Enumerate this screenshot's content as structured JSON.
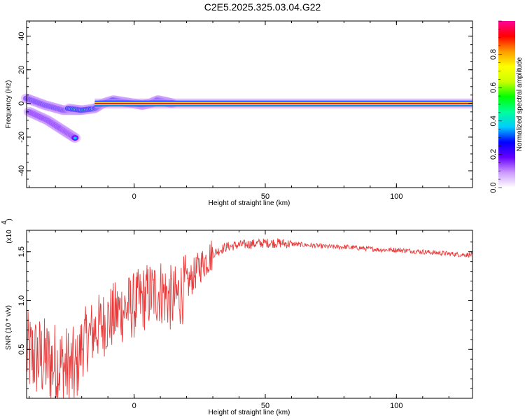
{
  "title": "C2E5.2025.325.03.04.G22",
  "chart_data": [
    {
      "type": "heatmap",
      "xlabel": "Height of straight line (km)",
      "ylabel": "Frequency (Hz)",
      "xlim": [
        -41,
        129
      ],
      "ylim": [
        -50,
        49
      ],
      "xticks": [
        0,
        50,
        100
      ],
      "yticks": [
        -40,
        -20,
        0,
        20,
        40
      ],
      "colorbar": {
        "label": "Normalized spectral amplitude",
        "range": [
          0,
          1
        ],
        "ticks": [
          "0.0",
          "0.2",
          "0.4",
          "0.6",
          "0.8"
        ],
        "colors": [
          "#ffffff",
          "#cc99ff",
          "#6600ff",
          "#0000ff",
          "#00ccff",
          "#00ff99",
          "#00ff00",
          "#ccff00",
          "#ffff00",
          "#ff9900",
          "#ff0000",
          "#ff0099"
        ]
      },
      "main_trace": {
        "x_start": -15,
        "x_end": 129,
        "frequency": 0,
        "amplitude": 0.85
      },
      "spread_branches": [
        {
          "x": [
            -41,
            -34,
            -27,
            -20
          ],
          "frequency": [
            3,
            -1,
            -4,
            -4
          ]
        },
        {
          "x": [
            -40,
            -33,
            -27,
            -22
          ],
          "frequency": [
            -5,
            -10,
            -16,
            -21
          ]
        }
      ]
    },
    {
      "type": "line",
      "xlabel": "Height of straight line (km)",
      "ylabel": "SNR (10 * v/v)",
      "yscale_note": "(x10^4)",
      "xlim": [
        -41,
        129
      ],
      "ylim": [
        0.0,
        1.72
      ],
      "xticks": [
        0,
        50,
        100
      ],
      "yticks": [
        0.5,
        1.0,
        1.5
      ],
      "color": "#e83a3a",
      "series": [
        {
          "x": [
            -41,
            -35,
            -30,
            -25,
            -22,
            -20,
            -15,
            -10,
            -5,
            0,
            5,
            10,
            15,
            20,
            25,
            30,
            35,
            40,
            45,
            50,
            55,
            60,
            65,
            70,
            75,
            80,
            85,
            90,
            95,
            100,
            105,
            110,
            115,
            120,
            125,
            129
          ],
          "values": [
            0.45,
            0.4,
            0.35,
            0.3,
            0.28,
            0.55,
            0.7,
            0.8,
            0.9,
            0.95,
            1.05,
            1.1,
            1.0,
            1.15,
            1.35,
            1.48,
            1.55,
            1.57,
            1.58,
            1.59,
            1.59,
            1.58,
            1.57,
            1.56,
            1.55,
            1.55,
            1.54,
            1.53,
            1.52,
            1.52,
            1.51,
            1.5,
            1.49,
            1.48,
            1.47,
            1.47
          ]
        }
      ]
    }
  ]
}
